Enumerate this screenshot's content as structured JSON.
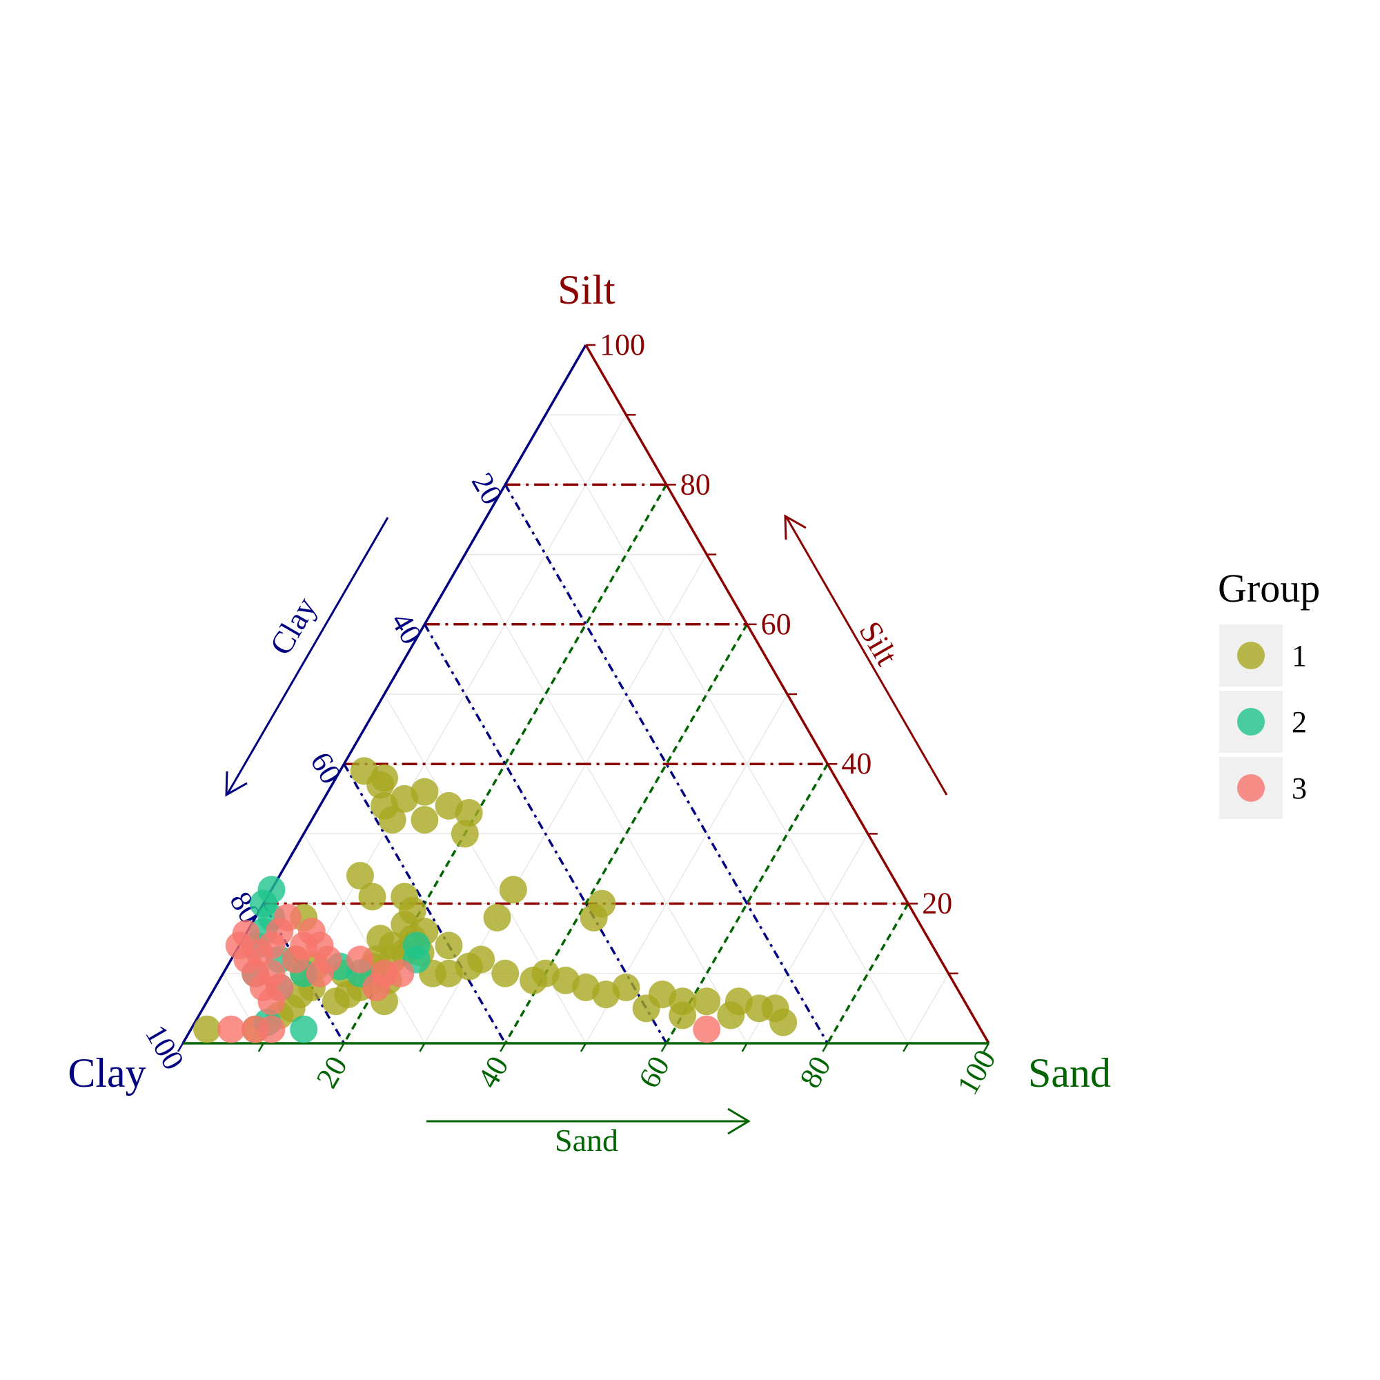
{
  "chart_data": {
    "type": "scatter",
    "subtype": "ternary",
    "axes": {
      "silt": {
        "label": "Silt",
        "arrow_label": "Silt",
        "color": "#8B0000",
        "ticks": [
          "20",
          "40",
          "60",
          "80",
          "100"
        ]
      },
      "clay": {
        "label": "Clay",
        "arrow_label": "Clay",
        "color": "#000080",
        "ticks": [
          "20",
          "40",
          "60",
          "80",
          "100"
        ]
      },
      "sand": {
        "label": "Sand",
        "arrow_label": "Sand",
        "color": "#006400",
        "ticks": [
          "20",
          "40",
          "60",
          "80",
          "100"
        ]
      }
    },
    "grid": true,
    "legend": {
      "title": "Group",
      "position": "right",
      "entries": [
        {
          "label": "1",
          "color": "#A8A820"
        },
        {
          "label": "2",
          "color": "#1FC48C"
        },
        {
          "label": "3",
          "color": "#F8766D"
        }
      ]
    },
    "series": [
      {
        "name": "1",
        "color": "#A8A820",
        "points": [
          [
            2,
            96,
            2
          ],
          [
            2,
            90,
            8
          ],
          [
            4,
            86,
            10
          ],
          [
            5,
            84,
            11
          ],
          [
            7,
            82,
            11
          ],
          [
            8,
            80,
            12
          ],
          [
            10,
            80,
            10
          ],
          [
            11,
            78,
            11
          ],
          [
            6,
            78,
            16
          ],
          [
            7,
            76,
            17
          ],
          [
            10,
            75,
            15
          ],
          [
            8,
            74,
            18
          ],
          [
            6,
            72,
            22
          ],
          [
            9,
            72,
            19
          ],
          [
            11,
            71,
            18
          ],
          [
            12,
            70,
            18
          ],
          [
            15,
            68,
            17
          ],
          [
            13,
            66,
            21
          ],
          [
            10,
            64,
            26
          ],
          [
            16,
            62,
            22
          ],
          [
            14,
            60,
            26
          ],
          [
            12,
            57,
            31
          ],
          [
            10,
            55,
            35
          ],
          [
            9,
            52,
            39
          ],
          [
            9,
            48,
            43
          ],
          [
            8,
            46,
            46
          ],
          [
            7,
            44,
            49
          ],
          [
            8,
            41,
            51
          ],
          [
            7,
            37,
            56
          ],
          [
            6,
            32,
            62
          ],
          [
            6,
            28,
            66
          ],
          [
            5,
            26,
            69
          ],
          [
            5,
            24,
            71
          ],
          [
            3,
            24,
            73
          ],
          [
            4,
            30,
            66
          ],
          [
            5,
            40,
            55
          ],
          [
            4,
            36,
            60
          ],
          [
            6,
            35,
            59
          ],
          [
            10,
            50,
            40
          ],
          [
            18,
            52,
            30
          ],
          [
            11,
            59,
            30
          ],
          [
            13,
            64,
            23
          ],
          [
            15,
            64,
            21
          ],
          [
            17,
            64,
            19
          ],
          [
            19,
            62,
            19
          ],
          [
            21,
            62,
            17
          ],
          [
            21,
            66,
            13
          ],
          [
            32,
            58,
            10
          ],
          [
            34,
            58,
            8
          ],
          [
            37,
            57,
            6
          ],
          [
            39,
            58,
            3
          ],
          [
            38,
            56,
            6
          ],
          [
            35,
            55,
            10
          ],
          [
            32,
            54,
            14
          ],
          [
            34,
            50,
            16
          ],
          [
            36,
            52,
            12
          ],
          [
            30,
            50,
            20
          ],
          [
            33,
            48,
            19
          ],
          [
            24,
            66,
            10
          ],
          [
            22,
            48,
            30
          ],
          [
            18,
            40,
            42
          ],
          [
            20,
            38,
            42
          ],
          [
            10,
            62,
            28
          ],
          [
            18,
            76,
            6
          ],
          [
            12,
            80,
            8
          ],
          [
            9,
            70,
            21
          ],
          [
            12,
            68,
            20
          ],
          [
            14,
            67,
            19
          ]
        ]
      },
      {
        "name": "2",
        "color": "#1FC48C",
        "points": [
          [
            3,
            88,
            9
          ],
          [
            2,
            84,
            14
          ],
          [
            8,
            84,
            8
          ],
          [
            10,
            86,
            4
          ],
          [
            14,
            84,
            2
          ],
          [
            16,
            82,
            2
          ],
          [
            18,
            80,
            2
          ],
          [
            20,
            80,
            0
          ],
          [
            22,
            78,
            0
          ],
          [
            12,
            82,
            6
          ],
          [
            10,
            80,
            10
          ],
          [
            10,
            73,
            17
          ],
          [
            12,
            65,
            23
          ],
          [
            14,
            64,
            22
          ],
          [
            11,
            75,
            14
          ]
        ]
      },
      {
        "name": "3",
        "color": "#F8766D",
        "points": [
          [
            2,
            93,
            5
          ],
          [
            2,
            90,
            8
          ],
          [
            2,
            88,
            10
          ],
          [
            6,
            86,
            8
          ],
          [
            8,
            86,
            6
          ],
          [
            10,
            86,
            4
          ],
          [
            12,
            86,
            2
          ],
          [
            14,
            86,
            0
          ],
          [
            16,
            86,
            -2
          ],
          [
            13,
            84,
            3
          ],
          [
            10,
            84,
            6
          ],
          [
            8,
            84,
            8
          ],
          [
            16,
            80,
            4
          ],
          [
            14,
            82,
            4
          ],
          [
            12,
            80,
            8
          ],
          [
            10,
            78,
            12
          ],
          [
            12,
            76,
            12
          ],
          [
            14,
            76,
            10
          ],
          [
            16,
            76,
            8
          ],
          [
            18,
            78,
            4
          ],
          [
            10,
            70,
            20
          ],
          [
            8,
            72,
            20
          ],
          [
            12,
            72,
            16
          ],
          [
            10,
            68,
            22
          ],
          [
            2,
            34,
            64
          ],
          [
            14,
            78,
            8
          ]
        ]
      }
    ]
  }
}
